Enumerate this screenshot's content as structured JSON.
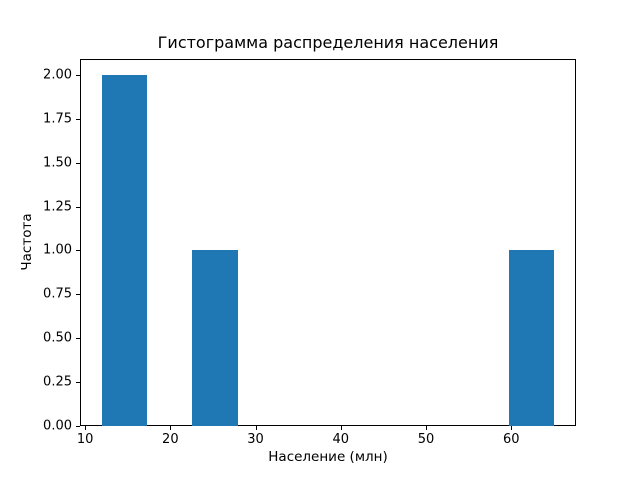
{
  "figure": {
    "background": "#ffffff",
    "text_color": "#000000"
  },
  "chart_data": {
    "type": "bar",
    "subtype": "histogram",
    "title": "Гистограмма распределения населения",
    "xlabel": "Население (млн)",
    "ylabel": "Частота",
    "bar_color": "#1f77b4",
    "grid": false,
    "legend": false,
    "xlim": [
      9.4,
      67.6
    ],
    "ylim": [
      0,
      2.09
    ],
    "xticks": [
      {
        "value": 10,
        "label": "10"
      },
      {
        "value": 20,
        "label": "20"
      },
      {
        "value": 30,
        "label": "30"
      },
      {
        "value": 40,
        "label": "40"
      },
      {
        "value": 50,
        "label": "50"
      },
      {
        "value": 60,
        "label": "60"
      }
    ],
    "yticks": [
      {
        "value": 0.0,
        "label": "0.00"
      },
      {
        "value": 0.25,
        "label": "0.25"
      },
      {
        "value": 0.5,
        "label": "0.50"
      },
      {
        "value": 0.75,
        "label": "0.75"
      },
      {
        "value": 1.0,
        "label": "1.00"
      },
      {
        "value": 1.25,
        "label": "1.25"
      },
      {
        "value": 1.5,
        "label": "1.50"
      },
      {
        "value": 1.75,
        "label": "1.75"
      },
      {
        "value": 2.0,
        "label": "2.00"
      }
    ],
    "bin_width": 5.3,
    "bars": [
      {
        "from": 12.0,
        "to": 17.3,
        "count": 2
      },
      {
        "from": 22.6,
        "to": 27.9,
        "count": 1
      },
      {
        "from": 59.7,
        "to": 65.0,
        "count": 1
      }
    ]
  }
}
